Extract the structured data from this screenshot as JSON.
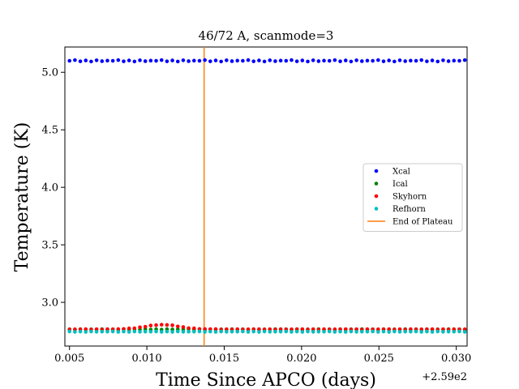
{
  "chart_data": {
    "type": "scatter",
    "title": "46/72 A, scanmode=3",
    "xlabel": "Time Since APCO (days)",
    "ylabel": "Temperature (K)",
    "x_offset_text": "+2.59e2",
    "xlim": [
      0.0047,
      0.0307
    ],
    "ylim": [
      2.62,
      5.22
    ],
    "xticks": [
      0.005,
      0.01,
      0.015,
      0.02,
      0.025,
      0.03
    ],
    "xtick_labels": [
      "0.005",
      "0.010",
      "0.015",
      "0.020",
      "0.025",
      "0.030"
    ],
    "yticks": [
      3.0,
      3.5,
      4.0,
      4.5,
      5.0
    ],
    "ytick_labels": [
      "3.0",
      "3.5",
      "4.0",
      "4.5",
      "5.0"
    ],
    "grid": false,
    "legend_position": "center-right",
    "x_start": 0.005,
    "x_step": 0.00035,
    "n_points": 75,
    "series": [
      {
        "name": "Xcal",
        "color": "#0000ff",
        "base": 5.1,
        "bump": 0.0
      },
      {
        "name": "Ical",
        "color": "#008000",
        "base": 2.765,
        "bump": 0.0
      },
      {
        "name": "Skyhorn",
        "color": "#ff0000",
        "base": 2.765,
        "bump": 0.04,
        "bump_center": 0.011,
        "bump_width": 0.0016
      },
      {
        "name": "Refhorn",
        "color": "#00bfbf",
        "base": 2.745,
        "bump": 0.0
      }
    ],
    "vline": {
      "name": "End of Plateau",
      "x": 0.0137,
      "color": "#ff7f0e"
    }
  }
}
